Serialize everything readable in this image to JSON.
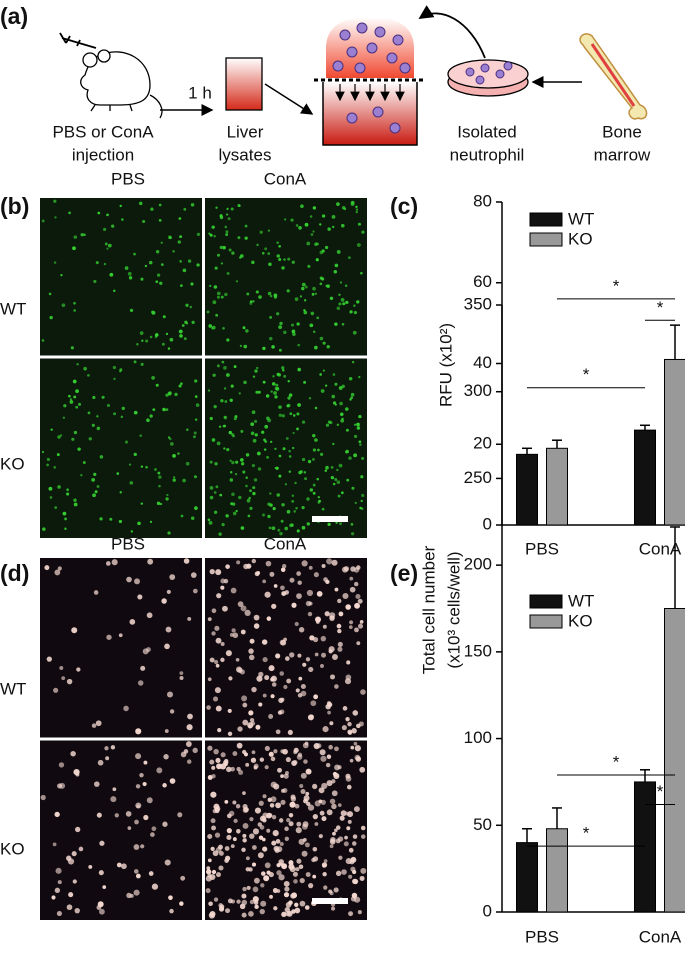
{
  "panel_labels": [
    "(a)",
    "(b)",
    "(c)",
    "(d)",
    "(e)"
  ],
  "schematic": {
    "time": "1 h",
    "injection": [
      "PBS or ConA",
      "injection"
    ],
    "lysates": [
      "Liver",
      "lysates"
    ],
    "neutrophil": [
      "Isolated",
      "neutrophil"
    ],
    "marrow": [
      "Bone",
      "marrow"
    ]
  },
  "micrographs": [
    {
      "columns": [
        "PBS",
        "ConA"
      ],
      "rows": [
        "WT",
        "KO"
      ]
    },
    {
      "columns": [
        "PBS",
        "ConA"
      ],
      "rows": [
        "WT",
        "KO"
      ]
    }
  ],
  "chart_data": [
    {
      "type": "bar",
      "ylabel": [
        "RFU (x10²)"
      ],
      "categories": [
        "PBS",
        "ConA"
      ],
      "series": [
        {
          "name": "WT",
          "color": "#111111",
          "values": [
            17.5,
            23.5
          ],
          "errors": [
            1.5,
            1.2
          ]
        },
        {
          "name": "KO",
          "color": "#999999",
          "values": [
            19,
            41
          ],
          "errors": [
            2,
            8.5
          ]
        }
      ],
      "ylim": [
        0,
        80
      ],
      "yticks": [
        0,
        20,
        40,
        60,
        80
      ],
      "legend": "top-left",
      "annotations": [
        {
          "text": "*",
          "from": [
            0,
            0
          ],
          "to": [
            0,
            1
          ],
          "y": 34
        },
        {
          "text": "*",
          "from": [
            1,
            0
          ],
          "to": [
            1,
            1
          ],
          "y": 56
        },
        {
          "text": "*",
          "from": [
            0,
            1
          ],
          "to": [
            1,
            1
          ],
          "y": 50.7
        }
      ]
    },
    {
      "type": "bar",
      "ylabel": [
        "Total cell number",
        "(x10³ cells/well)"
      ],
      "categories": [
        "PBS",
        "ConA"
      ],
      "series": [
        {
          "name": "WT",
          "color": "#111111",
          "values": [
            40,
            75
          ],
          "errors": [
            8,
            7
          ]
        },
        {
          "name": "KO",
          "color": "#999999",
          "values": [
            48,
            175
          ],
          "errors": [
            12,
            47
          ]
        }
      ],
      "ylim": [
        0,
        350
      ],
      "yticks": [
        0,
        50,
        100,
        150,
        200,
        250,
        300,
        350
      ],
      "legend": "top-left",
      "annotations": [
        {
          "text": "*",
          "from": [
            0,
            0
          ],
          "to": [
            0,
            1
          ],
          "y": 38
        },
        {
          "text": "*",
          "from": [
            1,
            0
          ],
          "to": [
            1,
            1
          ],
          "y": 79
        },
        {
          "text": "*",
          "from": [
            0,
            1
          ],
          "to": [
            1,
            1
          ],
          "y": 62
        }
      ]
    }
  ]
}
